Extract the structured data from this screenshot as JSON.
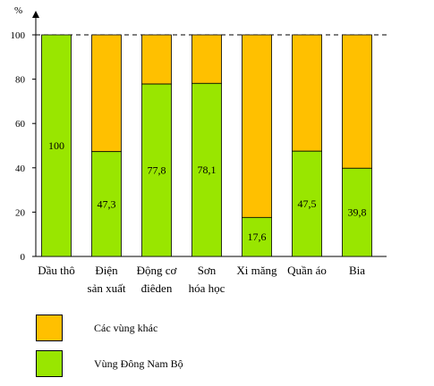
{
  "chart_data": {
    "type": "bar",
    "stacked": true,
    "percent_stacked": true,
    "yunit": "%",
    "ylim": [
      0,
      100
    ],
    "yticks": [
      0,
      20,
      40,
      60,
      80,
      100
    ],
    "categories": [
      [
        "Dầu thô"
      ],
      [
        "Điện",
        "sản xuất"
      ],
      [
        "Động cơ",
        "điêden"
      ],
      [
        "Sơn",
        "hóa học"
      ],
      [
        "Xi măng"
      ],
      [
        "Quần áo"
      ],
      [
        "Bia"
      ]
    ],
    "series": [
      {
        "name": "Vùng Đông Nam Bộ",
        "color": "#99e600",
        "values": [
          100,
          47.3,
          77.8,
          78.1,
          17.6,
          47.5,
          39.8
        ],
        "labels": [
          "100",
          "47,3",
          "77,8",
          "78,1",
          "17,6",
          "47,5",
          "39,8"
        ]
      },
      {
        "name": "Các vùng khác",
        "color": "#ffc000",
        "values": [
          0,
          52.7,
          22.2,
          21.9,
          82.4,
          52.5,
          60.2
        ]
      }
    ],
    "legend_position": "bottom-left",
    "grid": false
  },
  "legend": {
    "items": [
      {
        "label": "Các vùng khác",
        "color": "#ffc000"
      },
      {
        "label": "Vùng Đông Nam Bộ",
        "color": "#99e600"
      }
    ]
  }
}
